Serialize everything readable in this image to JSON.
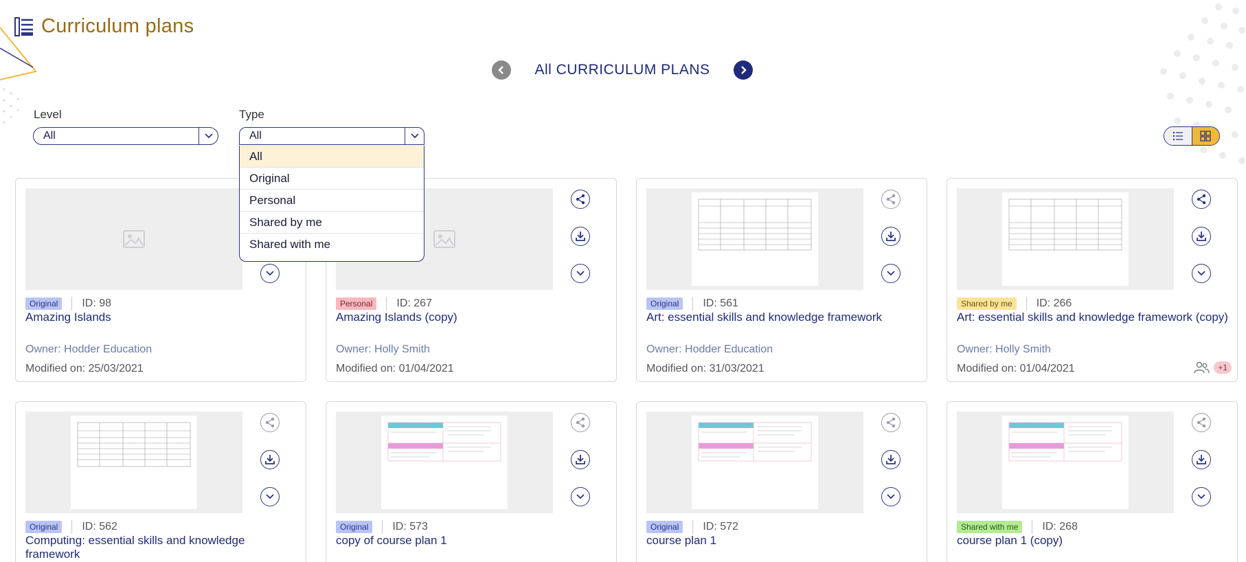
{
  "header": {
    "title": "Curriculum plans",
    "icon": "list-document-icon"
  },
  "nav": {
    "title": "All CURRICULUM PLANS",
    "prev_icon": "chevron-left-icon",
    "next_icon": "chevron-right-icon"
  },
  "filters": {
    "level": {
      "label": "Level",
      "value": "All"
    },
    "type": {
      "label": "Type",
      "value": "All",
      "options": [
        "All",
        "Original",
        "Personal",
        "Shared by me",
        "Shared with me"
      ],
      "selected": "All"
    }
  },
  "view_toggle": {
    "list_icon": "list-view-icon",
    "grid_icon": "grid-view-icon",
    "active": "grid"
  },
  "colors": {
    "accent": "#9a6a12",
    "primary": "#1f2a7a",
    "grid_active": "#f2b83a",
    "badge_original": "#b9c4f5",
    "badge_personal": "#f7b8be",
    "badge_shared_by_me": "#fbe39a",
    "badge_shared_with_me": "#b3ea92"
  },
  "cards": [
    {
      "badge": "Original",
      "id": "ID: 98",
      "title": "Amazing Islands",
      "owner": "Owner: Hodder Education",
      "modified": "Modified on: 25/03/2021"
    },
    {
      "badge": "Personal",
      "id": "ID: 267",
      "title": "Amazing Islands (copy)",
      "owner": "Owner: Holly Smith",
      "modified": "Modified on: 01/04/2021"
    },
    {
      "badge": "Original",
      "id": "ID: 561",
      "title": "Art: essential skills and knowledge framework",
      "owner": "Owner: Hodder Education",
      "modified": "Modified on: 31/03/2021"
    },
    {
      "badge": "Shared by me",
      "id": "ID: 266",
      "title": "Art: essential skills and knowledge framework (copy)",
      "owner": "Owner: Holly Smith",
      "modified": "Modified on: 01/04/2021",
      "shared_count": "+1"
    },
    {
      "badge": "Original",
      "id": "ID: 562",
      "title": "Computing: essential skills and knowledge framework"
    },
    {
      "badge": "Original",
      "id": "ID: 573",
      "title": "copy of course plan 1"
    },
    {
      "badge": "Original",
      "id": "ID: 572",
      "title": "course plan 1"
    },
    {
      "badge": "Shared with me",
      "id": "ID: 268",
      "title": "course plan 1 (copy)"
    }
  ]
}
